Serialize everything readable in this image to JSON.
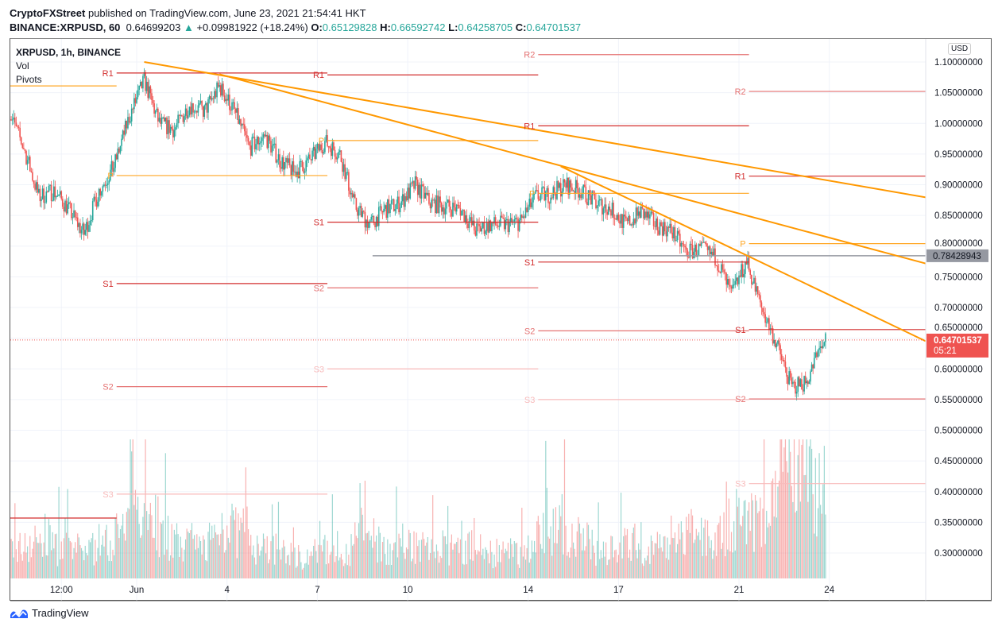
{
  "header": {
    "author": "CryptoFXStreet",
    "published": " published on TradingView.com, June 23, 2021 21:54:41 HKT",
    "symbol": "BINANCE:XRPUSD, 60",
    "last": "0.64699203",
    "arrow": "▲",
    "change": "+0.09981922 (+18.24%)",
    "o_label": "O:",
    "o": "0.65129828",
    "h_label": "H:",
    "h": "0.66592742",
    "l_label": "L:",
    "l": "0.64258705",
    "c_label": "C:",
    "c": "0.64701537"
  },
  "legend": {
    "title": "XRPUSD, 1h, BINANCE",
    "vol": "Vol",
    "pivots": "Pivots"
  },
  "currency": "USD",
  "brand": "TradingView",
  "colors": {
    "up": "#26a69a",
    "down": "#ef5350",
    "trend": "#ff9800",
    "pivot_p": "#ffa726",
    "r1s1": "#d32f2f",
    "r2s2": "#e57373",
    "s3": "#f8bbbb",
    "hline": "#9598a1",
    "price_tag": "#ef5350"
  },
  "chart_data": {
    "type": "candlestick",
    "title": "XRPUSD, 1h, BINANCE",
    "ylim": [
      0.25,
      1.12
    ],
    "grid": true,
    "y_ticks": [
      "1.10000000",
      "1.05000000",
      "1.00000000",
      "0.95000000",
      "0.90000000",
      "0.85000000",
      "0.80000000",
      "0.75000000",
      "0.70000000",
      "0.65000000",
      "0.60000000",
      "0.55000000",
      "0.50000000",
      "0.45000000",
      "0.40000000",
      "0.35000000",
      "0.30000000"
    ],
    "x_ticks": [
      {
        "label": "12:00",
        "t": "2021-05-29T12:00"
      },
      {
        "label": "Jun",
        "t": "2021-06-01T00:00"
      },
      {
        "label": "4",
        "t": "2021-06-04T00:00"
      },
      {
        "label": "7",
        "t": "2021-06-07T00:00"
      },
      {
        "label": "10",
        "t": "2021-06-10T00:00"
      },
      {
        "label": "14",
        "t": "2021-06-14T00:00"
      },
      {
        "label": "17",
        "t": "2021-06-17T00:00"
      },
      {
        "label": "21",
        "t": "2021-06-21T00:00"
      },
      {
        "label": "24",
        "t": "2021-06-24T00:00"
      }
    ],
    "close_start": "2021-05-27T18:00",
    "close_step_hours": 12,
    "closes": [
      1.02,
      0.96,
      0.88,
      0.89,
      0.86,
      0.82,
      0.89,
      0.93,
      1.01,
      1.07,
      1.0,
      0.99,
      1.03,
      1.02,
      1.06,
      1.02,
      0.96,
      0.98,
      0.94,
      0.92,
      0.94,
      0.97,
      0.95,
      0.865,
      0.835,
      0.86,
      0.87,
      0.9,
      0.87,
      0.865,
      0.86,
      0.825,
      0.835,
      0.835,
      0.84,
      0.88,
      0.885,
      0.9,
      0.89,
      0.87,
      0.86,
      0.835,
      0.855,
      0.835,
      0.825,
      0.79,
      0.795,
      0.78,
      0.72,
      0.775,
      0.7,
      0.64,
      0.57,
      0.58,
      0.64,
      0.647
    ],
    "volume_relative": [
      30,
      35,
      40,
      30,
      28,
      30,
      35,
      45,
      100,
      60,
      40,
      35,
      30,
      40,
      55,
      45,
      30,
      28,
      25,
      22,
      25,
      30,
      28,
      45,
      35,
      30,
      35,
      32,
      30,
      28,
      30,
      28,
      25,
      25,
      30,
      45,
      55,
      40,
      35,
      30,
      32,
      35,
      30,
      30,
      40,
      45,
      40,
      50,
      60,
      55,
      70,
      95,
      100,
      90,
      85,
      80
    ],
    "current_price": {
      "value": 0.64701537,
      "label": "0.64701537",
      "countdown": "05:21"
    },
    "horizontal_line": {
      "value": 0.78428943,
      "label": "0.78428943",
      "from": "2021-06-08T20:00"
    },
    "trendlines": [
      {
        "from": [
          "2021-06-01T06:00",
          1.1
        ],
        "to": [
          "2021-06-27T06:00",
          0.879
        ]
      },
      {
        "from": [
          "2021-06-03T18:00",
          1.08
        ],
        "to": [
          "2021-06-27T06:00",
          0.771
        ]
      },
      {
        "from": [
          "2021-06-15T02:00",
          0.93
        ],
        "to": [
          "2021-06-27T06:00",
          0.644
        ]
      }
    ],
    "pivots": [
      {
        "from": "2021-05-24T08:00",
        "to": "2021-05-31T08:00",
        "levels": [
          {
            "label": "",
            "value": 1.061,
            "kind": "P"
          },
          {
            "label": "",
            "value": 0.357,
            "kind": "R1"
          }
        ]
      },
      {
        "from": "2021-05-31T08:00",
        "to": "2021-06-07T08:00",
        "levels": [
          {
            "label": "R1",
            "value": 1.082,
            "kind": "R1"
          },
          {
            "label": "P",
            "value": 0.915,
            "kind": "P"
          },
          {
            "label": "S1",
            "value": 0.739,
            "kind": "S1"
          },
          {
            "label": "S2",
            "value": 0.571,
            "kind": "S2"
          },
          {
            "label": "S3",
            "value": 0.396,
            "kind": "S3"
          }
        ]
      },
      {
        "from": "2021-06-07T08:00",
        "to": "2021-06-14T08:00",
        "levels": [
          {
            "label": "R1",
            "value": 1.079,
            "kind": "R1"
          },
          {
            "label": "P",
            "value": 0.972,
            "kind": "P"
          },
          {
            "label": "S1",
            "value": 0.839,
            "kind": "S1"
          },
          {
            "label": "S2",
            "value": 0.732,
            "kind": "S2"
          },
          {
            "label": "S3",
            "value": 0.6,
            "kind": "S3"
          }
        ]
      },
      {
        "from": "2021-06-14T08:00",
        "to": "2021-06-21T08:00",
        "levels": [
          {
            "label": "R2",
            "value": 1.112,
            "kind": "R2"
          },
          {
            "label": "R1",
            "value": 0.996,
            "kind": "R1"
          },
          {
            "label": "P",
            "value": 0.886,
            "kind": "P"
          },
          {
            "label": "S1",
            "value": 0.774,
            "kind": "S1"
          },
          {
            "label": "S2",
            "value": 0.662,
            "kind": "S2"
          },
          {
            "label": "S3",
            "value": 0.55,
            "kind": "S3"
          }
        ]
      },
      {
        "from": "2021-06-21T08:00",
        "to": "2021-06-27T06:00",
        "levels": [
          {
            "label": "R2",
            "value": 1.052,
            "kind": "R2"
          },
          {
            "label": "R1",
            "value": 0.914,
            "kind": "R1"
          },
          {
            "label": "P",
            "value": 0.804,
            "kind": "P"
          },
          {
            "label": "S1",
            "value": 0.664,
            "kind": "S1"
          },
          {
            "label": "S2",
            "value": 0.551,
            "kind": "S2"
          },
          {
            "label": "S3",
            "value": 0.413,
            "kind": "S3"
          }
        ]
      }
    ]
  }
}
